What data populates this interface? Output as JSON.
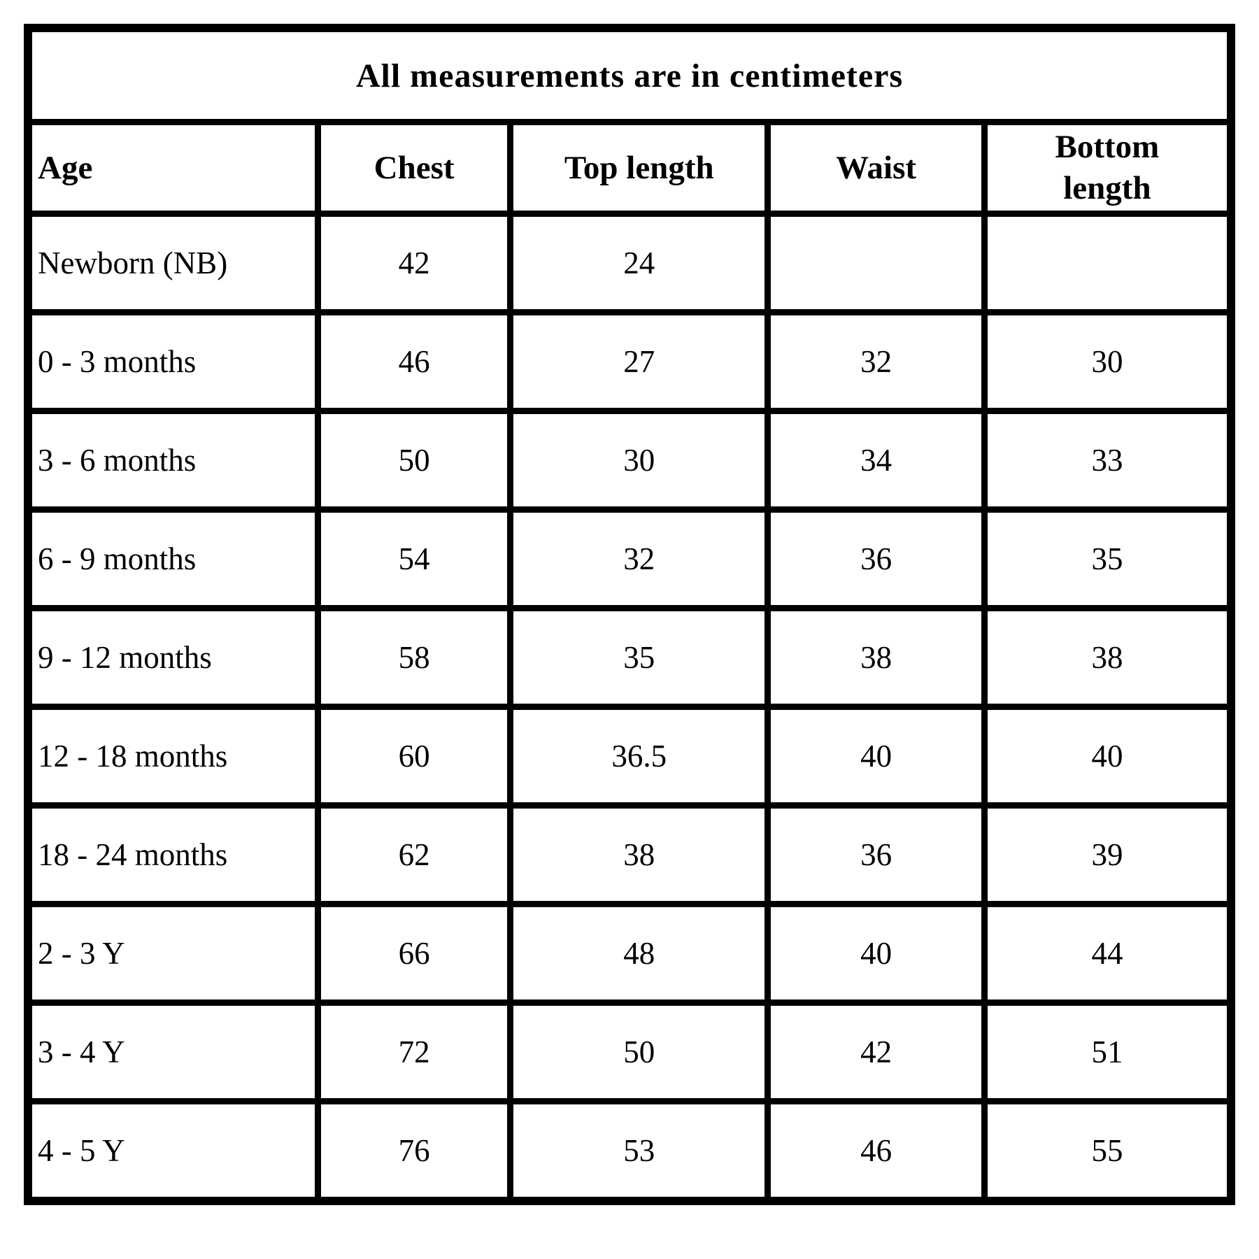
{
  "chart_data": {
    "type": "table",
    "title": "All measurements are in centimeters",
    "columns": [
      "Age",
      "Chest",
      "Top length",
      "Waist",
      "Bottom length"
    ],
    "rows": [
      [
        "Newborn (NB)",
        "42",
        "24",
        "",
        ""
      ],
      [
        "0 - 3 months",
        "46",
        "27",
        "32",
        "30"
      ],
      [
        "3 - 6 months",
        "50",
        "30",
        "34",
        "33"
      ],
      [
        "6 - 9 months",
        "54",
        "32",
        "36",
        "35"
      ],
      [
        "9 - 12 months",
        "58",
        "35",
        "38",
        "38"
      ],
      [
        "12 - 18 months",
        "60",
        "36.5",
        "40",
        "40"
      ],
      [
        "18 - 24 months",
        "62",
        "38",
        "36",
        "39"
      ],
      [
        "2 - 3 Y",
        "66",
        "48",
        "40",
        "44"
      ],
      [
        "3 - 4 Y",
        "72",
        "50",
        "42",
        "51"
      ],
      [
        "4 - 5 Y",
        "76",
        "53",
        "46",
        "55"
      ]
    ],
    "units": "centimeters"
  },
  "colors": {
    "border": "#000000",
    "text": "#000000",
    "background": "#ffffff"
  }
}
